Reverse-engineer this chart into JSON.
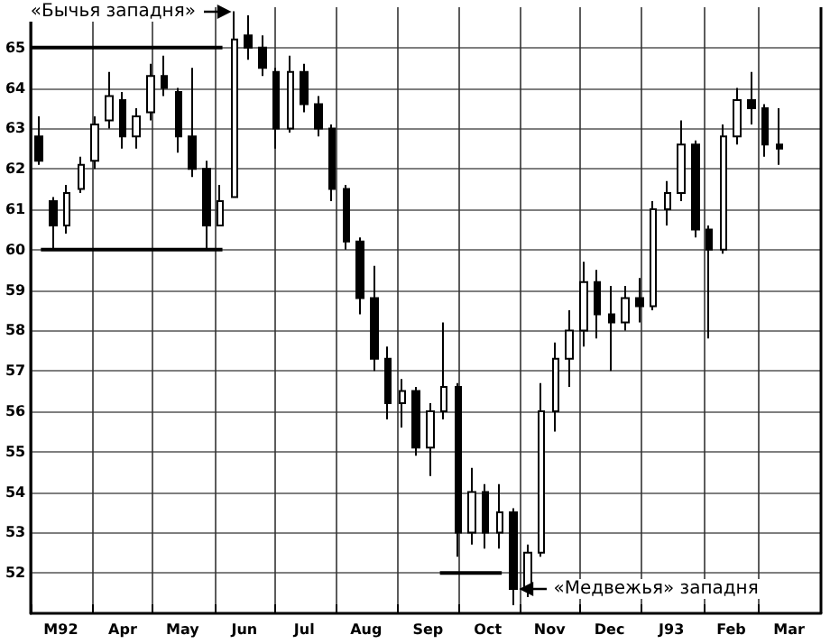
{
  "chart_data": {
    "type": "candlestick",
    "ylim": [
      51,
      66
    ],
    "yticks": [
      52,
      53,
      54,
      55,
      56,
      57,
      58,
      59,
      60,
      61,
      62,
      63,
      64,
      65
    ],
    "xlim": [
      "1992-03-01",
      "1993-04-01"
    ],
    "xticks": [
      {
        "value": "1992-03-01",
        "label": null
      },
      {
        "value": "1992-03-16",
        "label": "M92"
      },
      {
        "value": "1992-04-01",
        "label": null
      },
      {
        "value": "1992-04-16",
        "label": "Apr"
      },
      {
        "value": "1992-05-01",
        "label": null
      },
      {
        "value": "1992-05-16",
        "label": "May"
      },
      {
        "value": "1992-06-01",
        "label": null
      },
      {
        "value": "1992-06-16",
        "label": "Jun"
      },
      {
        "value": "1992-07-01",
        "label": null
      },
      {
        "value": "1992-07-16",
        "label": "Jul"
      },
      {
        "value": "1992-08-01",
        "label": null
      },
      {
        "value": "1992-08-16",
        "label": "Aug"
      },
      {
        "value": "1992-09-01",
        "label": null
      },
      {
        "value": "1992-09-16",
        "label": "Sep"
      },
      {
        "value": "1992-10-01",
        "label": null
      },
      {
        "value": "1992-10-16",
        "label": "Oct"
      },
      {
        "value": "1992-11-01",
        "label": null
      },
      {
        "value": "1992-11-16",
        "label": "Nov"
      },
      {
        "value": "1992-12-01",
        "label": null
      },
      {
        "value": "1992-12-16",
        "label": "Dec"
      },
      {
        "value": "1993-01-01",
        "label": null
      },
      {
        "value": "1993-01-16",
        "label": "J93"
      },
      {
        "value": "1993-02-01",
        "label": null
      },
      {
        "value": "1993-02-15",
        "label": "Feb"
      },
      {
        "value": "1993-03-01",
        "label": null
      },
      {
        "value": "1993-03-16",
        "label": "Mar"
      }
    ],
    "grid": true,
    "annotations": [
      {
        "text": "«Бычья западня»",
        "x": "1992-06-11",
        "y": 65.9
      },
      {
        "text": "«Медвежья» западня",
        "x": "1992-10-29",
        "y": 51.6
      }
    ],
    "series": [
      {
        "color": "#000000",
        "x": [
          "1992-03-05",
          "1992-03-12",
          "1992-03-19",
          "1992-03-26",
          "1992-04-02",
          "1992-04-09",
          "1992-04-16",
          "1992-04-23",
          "1992-04-30",
          "1992-05-07",
          "1992-05-14",
          "1992-05-21",
          "1992-05-28",
          "1992-06-04",
          "1992-06-11",
          "1992-06-18",
          "1992-06-25",
          "1992-07-02",
          "1992-07-09",
          "1992-07-16",
          "1992-07-23",
          "1992-07-30",
          "1992-08-06",
          "1992-08-13",
          "1992-08-20",
          "1992-08-27",
          "1992-09-03",
          "1992-09-10",
          "1992-09-17",
          "1992-09-24",
          "1992-10-01",
          "1992-10-08",
          "1992-10-15",
          "1992-10-22",
          "1992-10-29",
          "1992-11-05",
          "1992-11-12",
          "1992-11-19",
          "1992-11-26",
          "1992-12-03",
          "1992-12-10",
          "1992-12-17",
          "1992-12-24",
          "1992-12-31",
          "1993-01-07",
          "1993-01-14",
          "1993-01-21",
          "1993-01-28",
          "1993-02-04",
          "1993-02-11",
          "1993-02-18",
          "1993-02-25",
          "1993-03-04",
          "1993-03-11"
        ],
        "ohlc": [
          [
            62.8,
            63.3,
            62.1,
            62.2
          ],
          [
            61.2,
            61.3,
            60.0,
            60.6
          ],
          [
            60.6,
            61.6,
            60.4,
            61.4
          ],
          [
            61.5,
            62.3,
            61.4,
            62.1
          ],
          [
            62.2,
            63.3,
            62.0,
            63.1
          ],
          [
            63.2,
            64.4,
            63.0,
            63.8
          ],
          [
            63.7,
            63.9,
            62.5,
            62.8
          ],
          [
            62.8,
            63.5,
            62.5,
            63.3
          ],
          [
            63.4,
            64.6,
            63.2,
            64.3
          ],
          [
            64.3,
            64.8,
            63.8,
            64.0
          ],
          [
            63.9,
            64.0,
            62.4,
            62.8
          ],
          [
            62.8,
            64.5,
            61.8,
            62.0
          ],
          [
            62.0,
            62.2,
            60.0,
            60.6
          ],
          [
            60.6,
            61.6,
            60.6,
            61.2
          ],
          [
            61.3,
            65.9,
            61.3,
            65.2
          ],
          [
            65.3,
            65.8,
            64.7,
            65.0
          ],
          [
            65.0,
            65.3,
            64.3,
            64.5
          ],
          [
            64.4,
            64.5,
            62.5,
            63.0
          ],
          [
            63.0,
            64.8,
            62.9,
            64.4
          ],
          [
            64.4,
            64.6,
            63.4,
            63.6
          ],
          [
            63.6,
            63.8,
            62.8,
            63.0
          ],
          [
            63.0,
            63.1,
            61.2,
            61.5
          ],
          [
            61.5,
            61.6,
            60.0,
            60.2
          ],
          [
            60.2,
            60.3,
            58.4,
            58.8
          ],
          [
            58.8,
            59.6,
            57.0,
            57.3
          ],
          [
            57.3,
            57.6,
            55.8,
            56.2
          ],
          [
            56.2,
            56.8,
            55.6,
            56.5
          ],
          [
            56.5,
            56.6,
            54.9,
            55.1
          ],
          [
            55.1,
            56.2,
            54.4,
            56.0
          ],
          [
            56.0,
            58.2,
            55.8,
            56.6
          ],
          [
            56.6,
            56.7,
            52.4,
            53.0
          ],
          [
            53.0,
            54.6,
            52.7,
            54.0
          ],
          [
            54.0,
            54.2,
            52.6,
            53.0
          ],
          [
            53.0,
            54.2,
            52.6,
            53.5
          ],
          [
            53.5,
            53.6,
            51.2,
            51.6
          ],
          [
            51.6,
            52.7,
            51.4,
            52.5
          ],
          [
            52.5,
            56.7,
            52.4,
            56.0
          ],
          [
            56.0,
            57.7,
            55.5,
            57.3
          ],
          [
            57.3,
            58.5,
            56.6,
            58.0
          ],
          [
            58.0,
            59.7,
            57.6,
            59.2
          ],
          [
            59.2,
            59.5,
            57.8,
            58.4
          ],
          [
            58.4,
            59.1,
            57.0,
            58.2
          ],
          [
            58.2,
            59.1,
            58.0,
            58.8
          ],
          [
            58.8,
            59.3,
            58.2,
            58.6
          ],
          [
            58.6,
            61.2,
            58.5,
            61.0
          ],
          [
            61.0,
            61.7,
            60.6,
            61.4
          ],
          [
            61.4,
            63.2,
            61.2,
            62.6
          ],
          [
            62.6,
            62.7,
            60.3,
            60.5
          ],
          [
            60.5,
            60.6,
            57.8,
            60.0
          ],
          [
            60.0,
            63.1,
            59.9,
            62.8
          ],
          [
            62.8,
            64.0,
            62.6,
            63.7
          ],
          [
            63.7,
            64.4,
            63.1,
            63.5
          ],
          [
            63.5,
            63.6,
            62.3,
            62.6
          ],
          [
            62.6,
            63.5,
            62.1,
            62.5
          ]
        ]
      },
      {
        "type": "line",
        "color": "#000000",
        "x": [
          "1992-03-01",
          "1992-06-05"
        ],
        "values": [
          65,
          65
        ]
      },
      {
        "type": "line",
        "color": "#000000",
        "x": [
          "1992-03-06",
          "1992-06-05"
        ],
        "values": [
          60,
          60
        ]
      },
      {
        "type": "line",
        "color": "#000000",
        "x": [
          "1992-09-22",
          "1992-10-23"
        ],
        "values": [
          52,
          52
        ]
      }
    ]
  }
}
